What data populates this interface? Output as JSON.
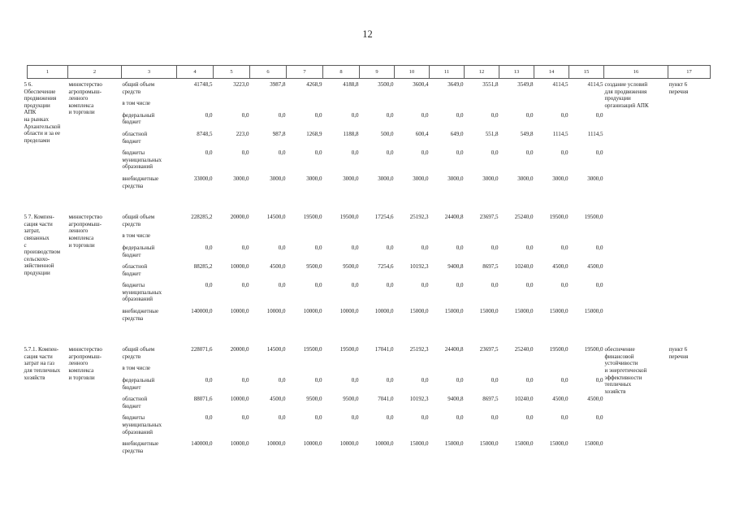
{
  "page": {
    "number": "12"
  },
  "table": {
    "header_cols": [
      "1",
      "2",
      "3",
      "4",
      "5",
      "6",
      "7",
      "8",
      "9",
      "10",
      "11",
      "12",
      "13",
      "14",
      "15",
      "16",
      "17"
    ],
    "sections": [
      {
        "item": "5 6. Обеспечение\nпродвижения\nпродукции АПК\nна рынках\nАрхангельской\nобласти и за ее\nпределами",
        "executor": "министерство\nагропромыш-\nленного\nкомплекса\nи торговли",
        "expected_result": "создание условий\nдля продвижения\nпродукции\nорганизаций АПК",
        "reference": "пункт 6\nперечня",
        "funding_rows": [
          {
            "label": "общий объем\nсредств",
            "values": [
              "41748,5",
              "3223,0",
              "3987,8",
              "4268,9",
              "4188,8",
              "3500,0",
              "3600,4",
              "3649,0",
              "3551,8",
              "3549,8",
              "4114,5",
              "4114,5"
            ]
          },
          {
            "label": "в том числе",
            "values": []
          },
          {
            "label": "федеральный\nбюджет",
            "values": [
              "0,0",
              "0,0",
              "0,0",
              "0,0",
              "0,0",
              "0,0",
              "0,0",
              "0,0",
              "0,0",
              "0,0",
              "0,0",
              "0,0"
            ]
          },
          {
            "label": "областной\nбюджет",
            "values": [
              "8748,5",
              "223,0",
              "987,8",
              "1268,9",
              "1188,8",
              "500,0",
              "600,4",
              "649,0",
              "551,8",
              "549,8",
              "1114,5",
              "1114,5"
            ]
          },
          {
            "label": "бюджеты\nмуниципальных\nобразований",
            "values": [
              "0,0",
              "0,0",
              "0,0",
              "0,0",
              "0,0",
              "0,0",
              "0,0",
              "0,0",
              "0,0",
              "0,0",
              "0,0",
              "0,0"
            ]
          },
          {
            "label": "внебюджетные\nсредства",
            "values": [
              "33000,0",
              "3000,0",
              "3000,0",
              "3000,0",
              "3000,0",
              "3000,0",
              "3000,0",
              "3000,0",
              "3000,0",
              "3000,0",
              "3000,0",
              "3000,0"
            ]
          }
        ]
      },
      {
        "item": "5 7. Компен-\nсация части\nзатрат,\nсвязанных\nс производством\nсельскохо-\nзяйственной\nпродукции",
        "executor": "министерство\nагропромыш-\nленного\nкомплекса\nи торговли",
        "expected_result": "",
        "reference": "",
        "funding_rows": [
          {
            "label": "общий объем\nсредств",
            "values": [
              "228285,2",
              "20000,0",
              "14500,0",
              "19500,0",
              "19500,0",
              "17254,6",
              "25192,3",
              "24400,8",
              "23697,5",
              "25240,0",
              "19500,0",
              "19500,0"
            ]
          },
          {
            "label": "в том числе",
            "values": []
          },
          {
            "label": "федеральный\nбюджет",
            "values": [
              "0,0",
              "0,0",
              "0,0",
              "0,0",
              "0,0",
              "0,0",
              "0,0",
              "0,0",
              "0,0",
              "0,0",
              "0,0",
              "0,0"
            ]
          },
          {
            "label": "областной\nбюджет",
            "values": [
              "88285,2",
              "10000,0",
              "4500,0",
              "9500,0",
              "9500,0",
              "7254,6",
              "10192,3",
              "9400,8",
              "8697,5",
              "10240,0",
              "4500,0",
              "4500,0"
            ]
          },
          {
            "label": "бюджеты\nмуниципальных\nобразований",
            "values": [
              "0,0",
              "0,0",
              "0,0",
              "0,0",
              "0,0",
              "0,0",
              "0,0",
              "0,0",
              "0,0",
              "0,0",
              "0,0",
              "0,0"
            ]
          },
          {
            "label": "внебюджетные\nсредства",
            "values": [
              "140000,0",
              "10000,0",
              "10000,0",
              "10000,0",
              "10000,0",
              "10000,0",
              "15000,0",
              "15000,0",
              "15000,0",
              "15000,0",
              "15000,0",
              "15000,0"
            ]
          }
        ]
      },
      {
        "item": "5.7.1. Компен-\nсация части\nзатрат на газ\nдля тепличных\nхозяйств",
        "executor": "министерство\nагропромыш-\nленного\nкомплекса\nи торговли",
        "expected_result": "обеспечение\nфинансовой\nустойчивости\nи энергетической\nэффективности\nтепличных\nхозяйств",
        "reference": "пункт 6\nперечня",
        "funding_rows": [
          {
            "label": "общий объем\nсредств",
            "values": [
              "228071,6",
              "20000,0",
              "14500,0",
              "19500,0",
              "19500,0",
              "17041,0",
              "25192,3",
              "24400,8",
              "23697,5",
              "25240,0",
              "19500,0",
              "19500,0"
            ]
          },
          {
            "label": "в том числе",
            "values": []
          },
          {
            "label": "федеральный\nбюджет",
            "values": [
              "0,0",
              "0,0",
              "0,0",
              "0,0",
              "0,0",
              "0,0",
              "0,0",
              "0,0",
              "0,0",
              "0,0",
              "0,0",
              "0,0"
            ]
          },
          {
            "label": "областной\nбюджет",
            "values": [
              "88071,6",
              "10000,0",
              "4500,0",
              "9500,0",
              "9500,0",
              "7041,0",
              "10192,3",
              "9400,8",
              "8697,5",
              "10240,0",
              "4500,0",
              "4500,0"
            ]
          },
          {
            "label": "бюджеты\nмуниципальных\nобразований",
            "values": [
              "0,0",
              "0,0",
              "0,0",
              "0,0",
              "0,0",
              "0,0",
              "0,0",
              "0,0",
              "0,0",
              "0,0",
              "0,0",
              "0,0"
            ]
          },
          {
            "label": "внебюджетные\nсредства",
            "values": [
              "140000,0",
              "10000,0",
              "10000,0",
              "10000,0",
              "10000,0",
              "10000,0",
              "15000,0",
              "15000,0",
              "15000,0",
              "15000,0",
              "15000,0",
              "15000,0"
            ]
          }
        ]
      }
    ]
  }
}
